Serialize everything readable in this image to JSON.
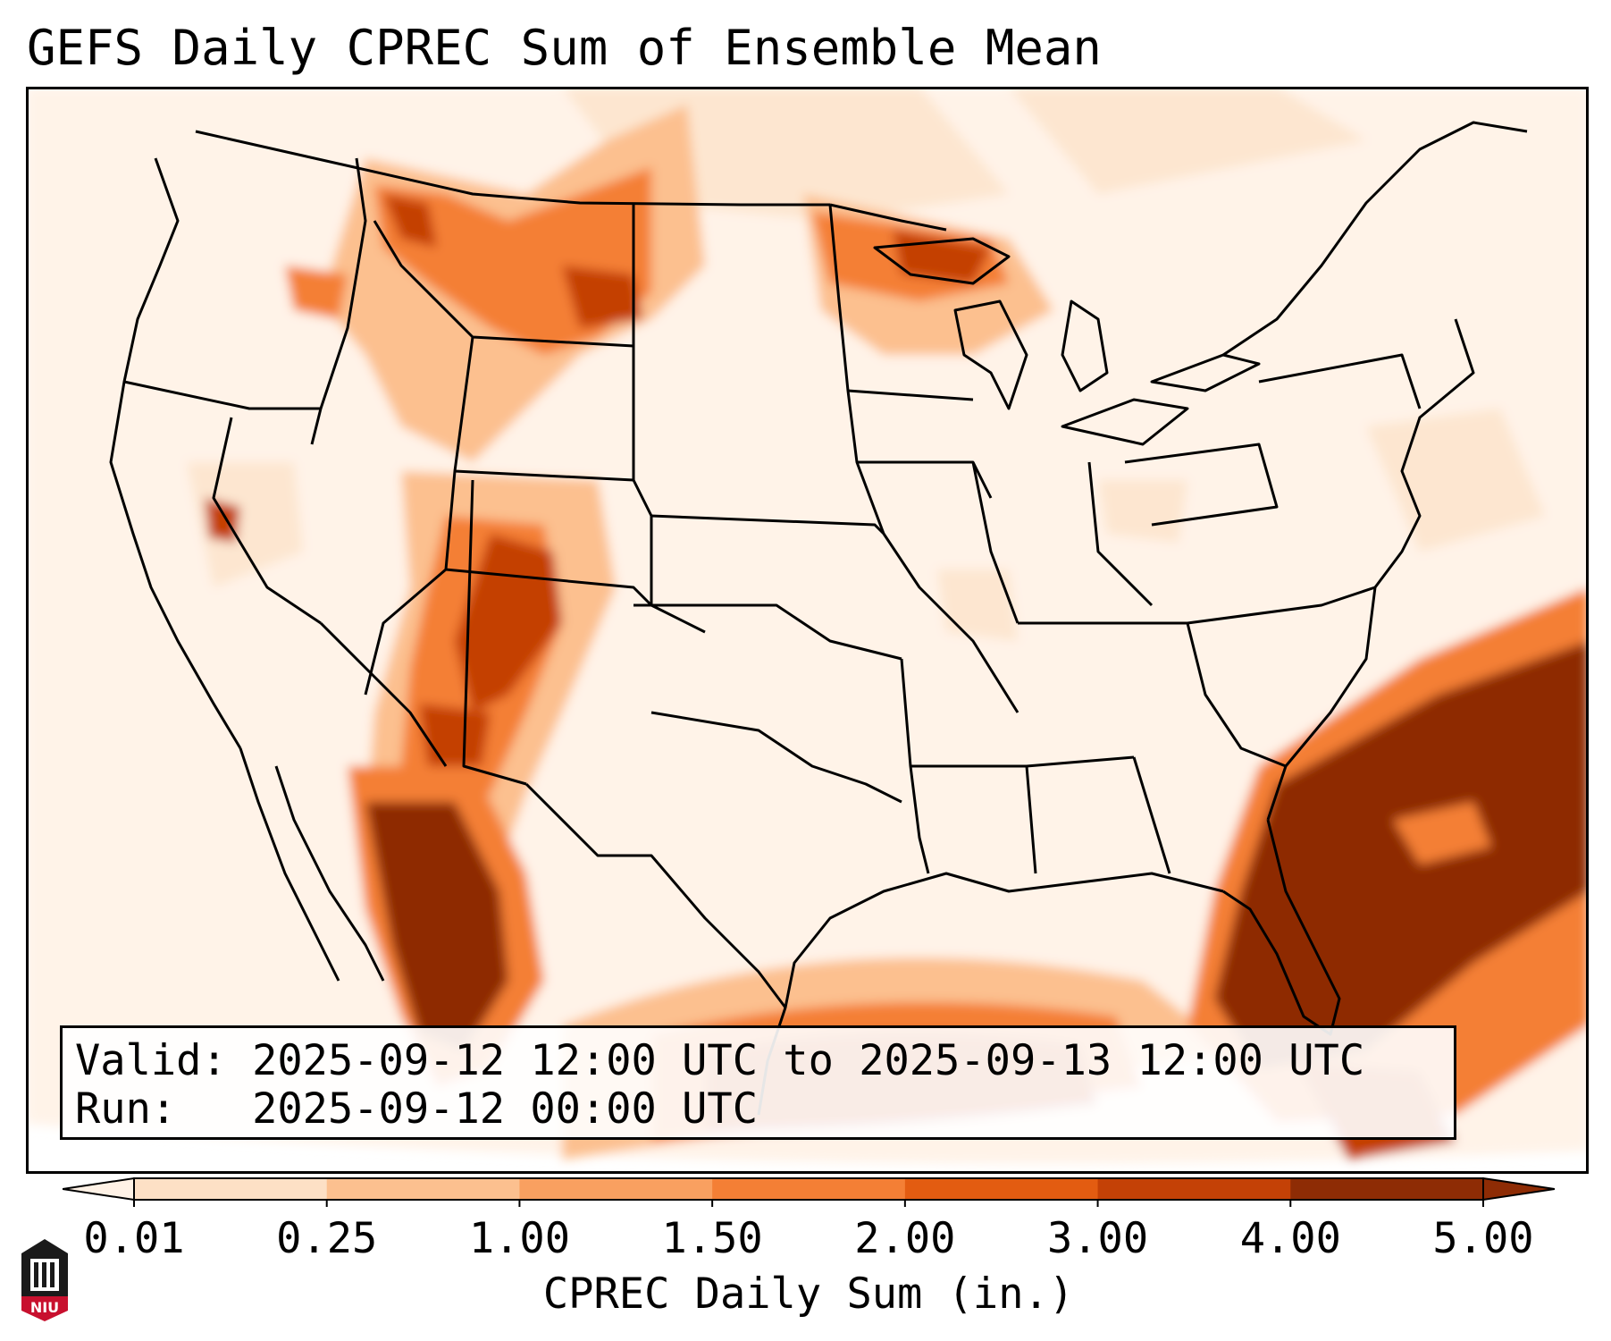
{
  "title": "GEFS Daily CPREC Sum of Ensemble Mean",
  "info_box": {
    "valid_label": "Valid:",
    "valid_value": "2025-09-12 12:00 UTC to 2025-09-13 12:00 UTC",
    "run_label": "Run:",
    "run_value": "2025-09-12 00:00 UTC"
  },
  "colorbar": {
    "label": "CPREC Daily Sum (in.)",
    "ticks": [
      "0.01",
      "0.25",
      "1.00",
      "1.50",
      "2.00",
      "3.00",
      "4.00",
      "5.00"
    ],
    "colors": [
      "#fff2e6",
      "#fde0c5",
      "#fcc08f",
      "#f9a060",
      "#f47f35",
      "#e35c11",
      "#c44106",
      "#8e2c05"
    ]
  },
  "logo_text": "NIU",
  "colors": {
    "max": "#8e2c05",
    "high": "#c44106",
    "mid": "#f47f35",
    "low": "#fcc08f",
    "faint": "#fde6d0",
    "trace": "#fff3e8"
  }
}
